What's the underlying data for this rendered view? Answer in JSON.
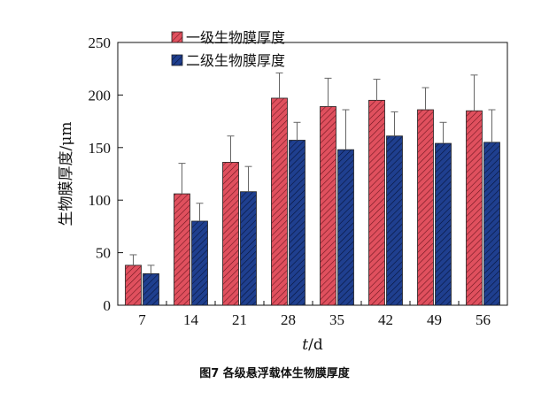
{
  "caption": "图7  各级悬浮载体生物膜厚度",
  "chart_data": {
    "type": "bar",
    "categories": [
      "7",
      "14",
      "21",
      "28",
      "35",
      "42",
      "49",
      "56"
    ],
    "xlabel_var": "t",
    "xlabel_unit": "/d",
    "ylabel": "生物膜厚度/μm",
    "ylim": [
      0,
      250
    ],
    "yticks": [
      0,
      50,
      100,
      150,
      200,
      250
    ],
    "grid": false,
    "legend_position": "top-left",
    "series": [
      {
        "name": "一级生物膜厚度",
        "color": "#e0505e",
        "values": [
          38,
          106,
          136,
          197,
          189,
          195,
          186,
          185
        ],
        "errors": [
          10,
          29,
          25,
          24,
          27,
          20,
          21,
          34
        ]
      },
      {
        "name": "二级生物膜厚度",
        "color": "#1f3f8f",
        "values": [
          30,
          80,
          108,
          157,
          148,
          161,
          154,
          155
        ],
        "errors": [
          8,
          17,
          24,
          17,
          38,
          23,
          20,
          31
        ]
      }
    ]
  }
}
